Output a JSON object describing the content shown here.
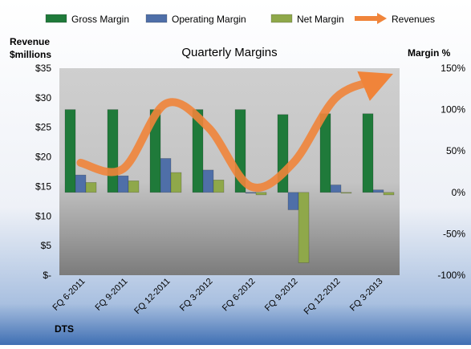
{
  "chart_data": {
    "type": "bar",
    "title": "Quarterly Margins",
    "footer_label": "DTS",
    "left_axis_label_line1": "Revenue",
    "left_axis_label_line2": "$millions",
    "right_axis_label": "Margin %",
    "categories": [
      "FQ 6-2011",
      "FQ 9-2011",
      "FQ 12-2011",
      "FQ 3-2012",
      "FQ 6-2012",
      "FQ 9-2012",
      "FQ 12-2012",
      "FQ 3-2013"
    ],
    "series": [
      {
        "name": "Gross Margin",
        "axis": "right",
        "color": "#1f7a3a",
        "values": [
          100,
          100,
          100,
          100,
          100,
          94,
          95,
          95
        ]
      },
      {
        "name": "Operating Margin",
        "axis": "right",
        "color": "#4f6fa8",
        "values": [
          21,
          20,
          41,
          27,
          0,
          -21,
          9,
          3
        ]
      },
      {
        "name": "Net Margin",
        "axis": "right",
        "color": "#8fa84a",
        "values": [
          12,
          14,
          24,
          15,
          -3,
          -85,
          0,
          -3
        ]
      }
    ],
    "line_series": {
      "name": "Revenues",
      "axis": "left",
      "color": "#f0843a",
      "values": [
        19,
        18,
        29,
        25,
        15,
        19,
        30,
        33
      ]
    },
    "left_axis": {
      "min": 0,
      "max": 35,
      "step": 5,
      "tick_labels": [
        "$-",
        "$5",
        "$10",
        "$15",
        "$20",
        "$25",
        "$30",
        "$35"
      ]
    },
    "right_axis": {
      "min": -100,
      "max": 150,
      "step": 50,
      "tick_labels": [
        "-100%",
        "-50%",
        "0%",
        "50%",
        "100%",
        "150%"
      ]
    },
    "legend_position": "top",
    "grid": false
  }
}
